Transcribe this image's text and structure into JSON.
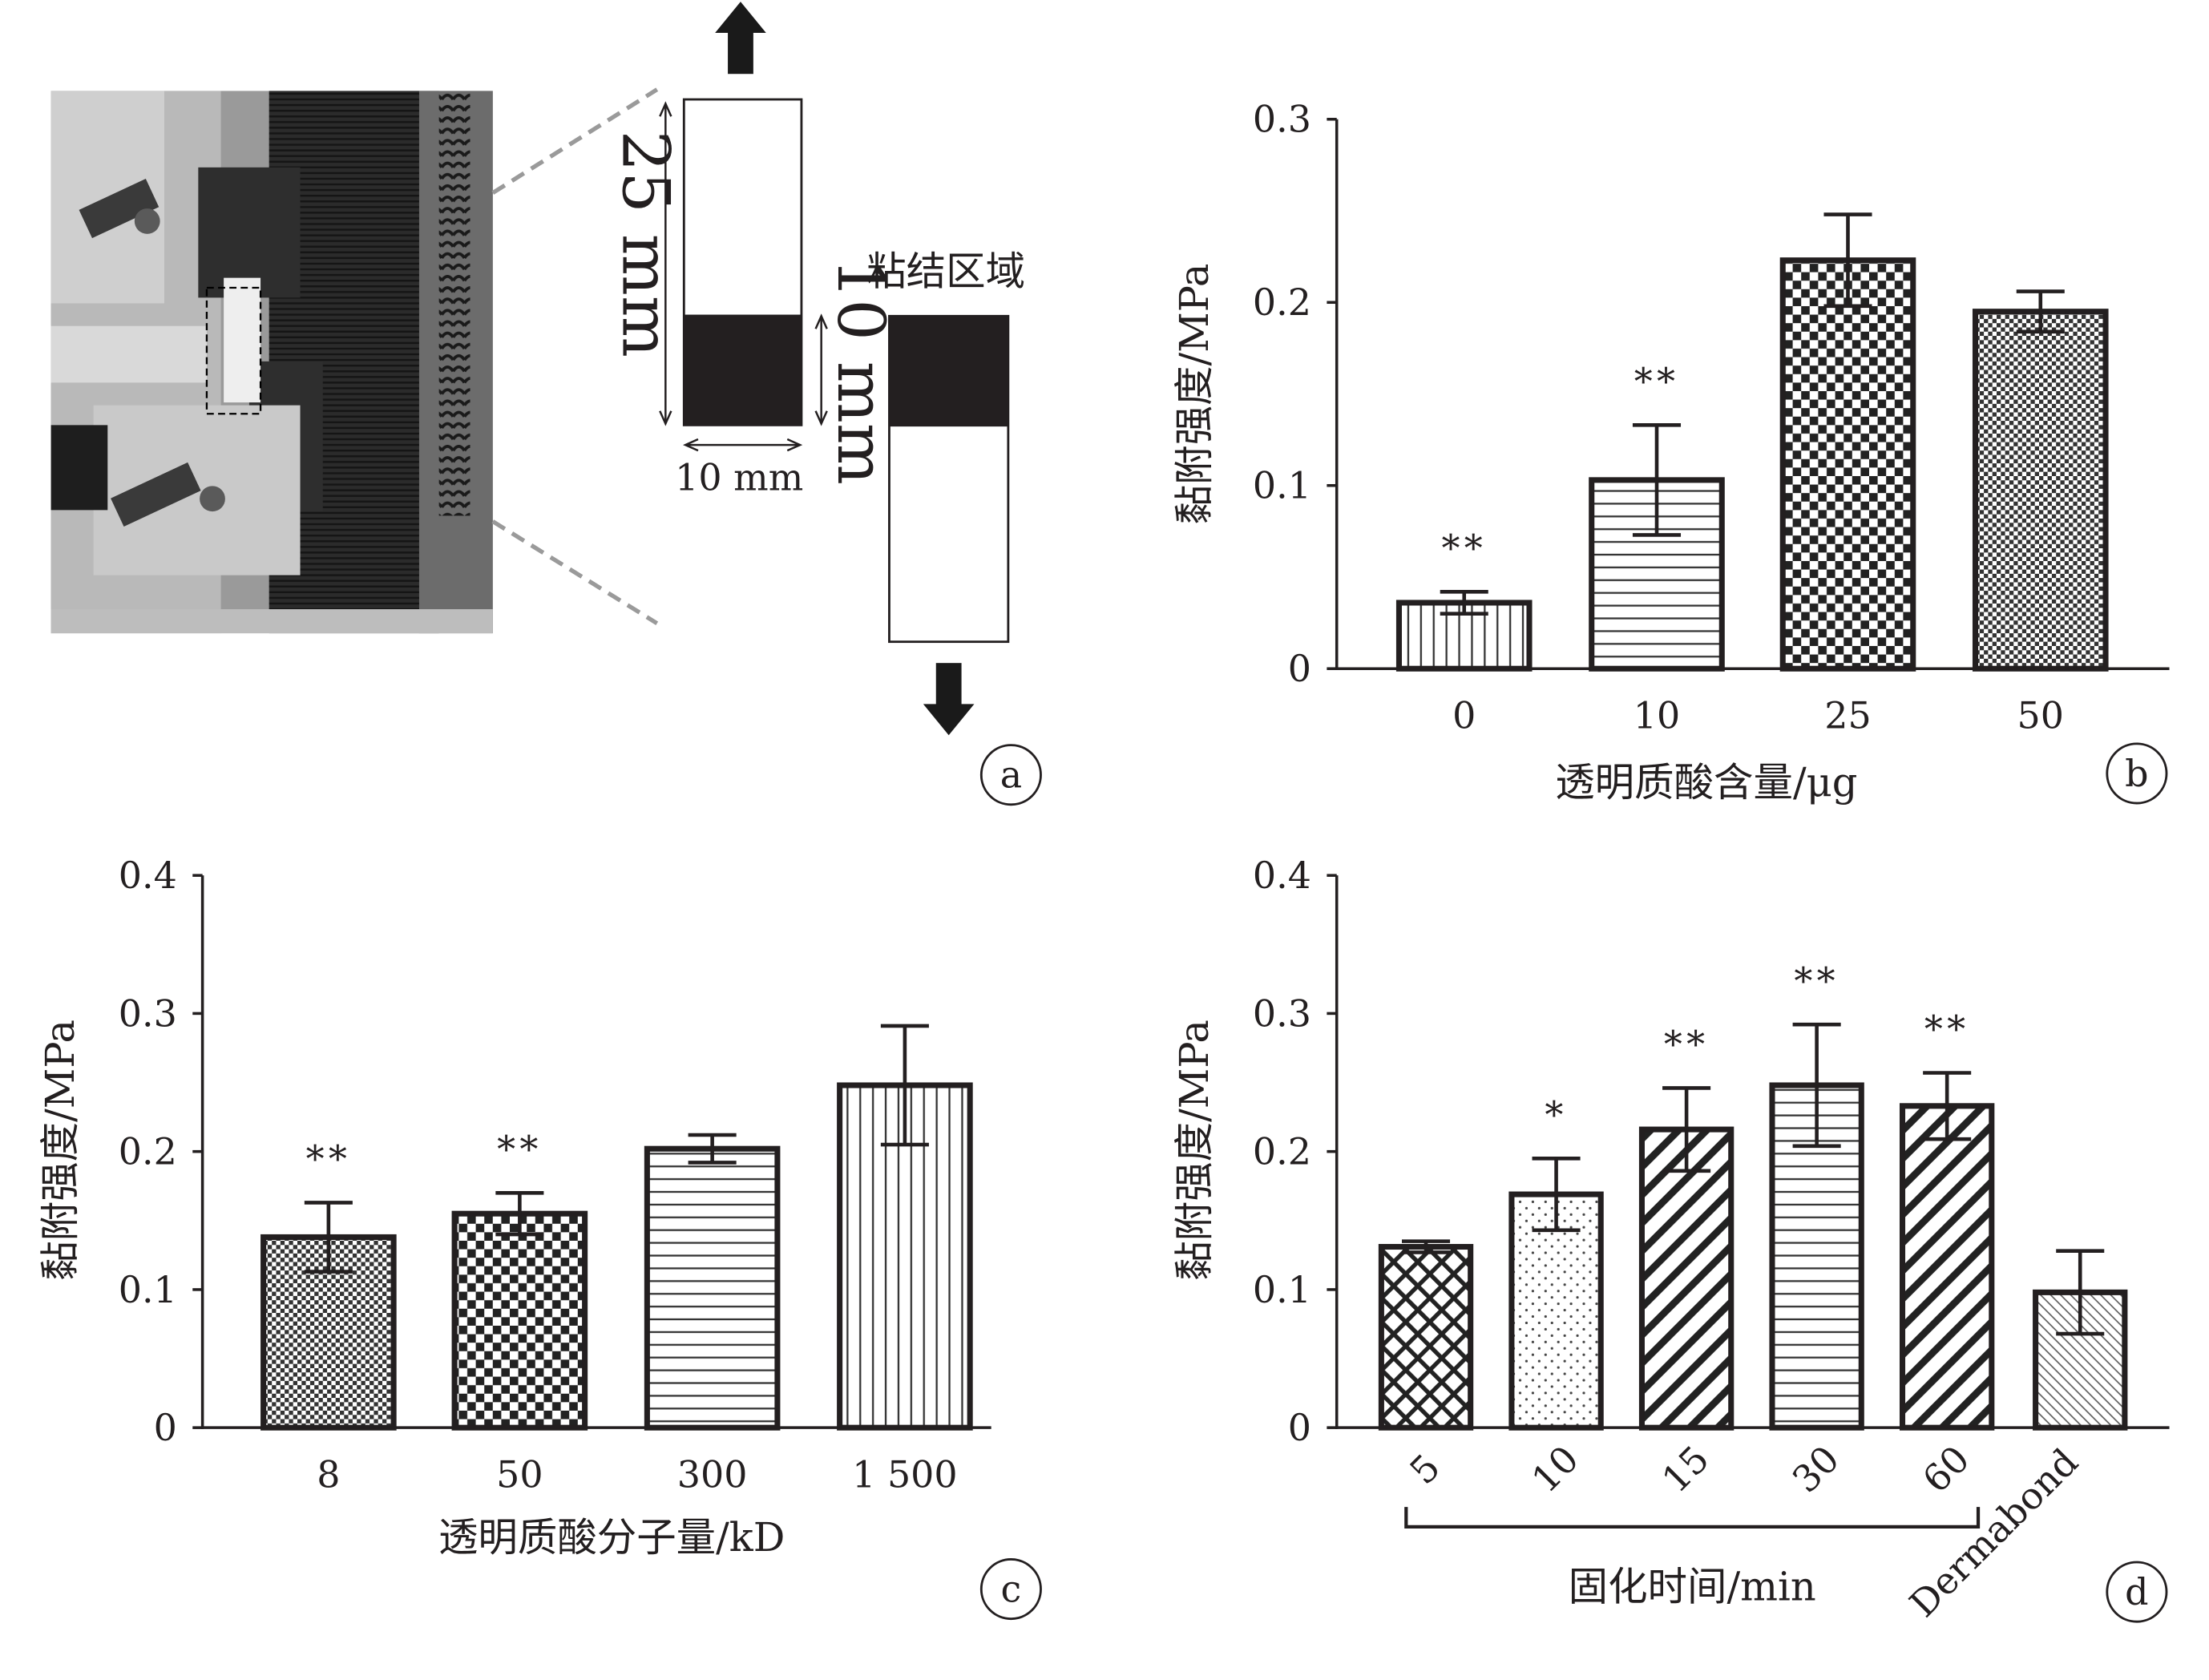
{
  "panels": {
    "a": {
      "letter": "a",
      "bonded_area_label": "粘结区域",
      "dim_length": "25 mm",
      "dim_overlap": "10 mm",
      "dim_width": "10 mm"
    }
  },
  "chart_data": [
    {
      "panel": "b",
      "type": "bar",
      "xlabel": "透明质酸含量/μg",
      "ylabel": "黏附强度/MPa",
      "ylim": [
        0,
        0.3
      ],
      "yticks": [
        "0",
        "0.1",
        "0.2",
        "0.3"
      ],
      "categories": [
        "0",
        "10",
        "25",
        "50"
      ],
      "values": [
        0.036,
        0.103,
        0.223,
        0.195
      ],
      "errors": [
        0.006,
        0.03,
        0.025,
        0.011
      ],
      "significance": [
        "**",
        "**",
        "",
        ""
      ],
      "patterns": [
        "vlines",
        "hlines",
        "checker-large",
        "checker-small"
      ]
    },
    {
      "panel": "c",
      "type": "bar",
      "xlabel": "透明质酸分子量/kD",
      "ylabel": "黏附强度/MPa",
      "ylim": [
        0,
        0.4
      ],
      "yticks": [
        "0",
        "0.1",
        "0.2",
        "0.3",
        "0.4"
      ],
      "categories": [
        "8",
        "50",
        "300",
        "1 500"
      ],
      "values": [
        0.138,
        0.155,
        0.202,
        0.248
      ],
      "errors": [
        0.025,
        0.015,
        0.01,
        0.043
      ],
      "significance": [
        "**",
        "**",
        "",
        ""
      ],
      "patterns": [
        "checker-small",
        "checker-large",
        "hlines",
        "vlines"
      ]
    },
    {
      "panel": "d",
      "type": "bar",
      "xlabel": "固化时间/min",
      "ylabel": "黏附强度/MPa",
      "ylim": [
        0,
        0.4
      ],
      "yticks": [
        "0",
        "0.1",
        "0.2",
        "0.3",
        "0.4"
      ],
      "categories": [
        "5",
        "10",
        "15",
        "30",
        "60",
        "Dermabond"
      ],
      "values": [
        0.131,
        0.169,
        0.216,
        0.248,
        0.233,
        0.098
      ],
      "errors": [
        0.004,
        0.026,
        0.03,
        0.044,
        0.024,
        0.03
      ],
      "significance": [
        "",
        "*",
        "**",
        "**",
        "**",
        ""
      ],
      "patterns": [
        "crosshatch",
        "dots",
        "diag-bold",
        "hlines",
        "diag-bold",
        "diag-thin"
      ],
      "bracket_span": 5
    }
  ]
}
